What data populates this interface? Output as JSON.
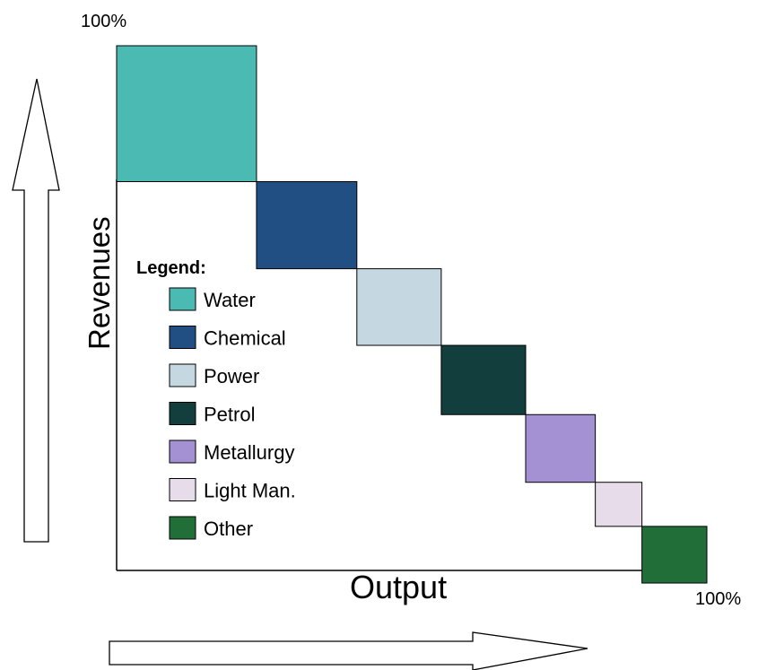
{
  "chart_data": {
    "type": "marimekko-diagonal",
    "title": "",
    "xlabel": "Output",
    "ylabel": "Revenues",
    "x_max_label": "100%",
    "y_max_label": "100%",
    "legend_title": "Legend:",
    "legend_position": "left-middle",
    "series": [
      {
        "name": "Water",
        "color": "#4bbab3",
        "output_share": 23.7,
        "revenue_share": 25.9
      },
      {
        "name": "Chemical",
        "color": "#214f84",
        "output_share": 17.0,
        "revenue_share": 16.6
      },
      {
        "name": "Power",
        "color": "#c5d7e0",
        "output_share": 14.3,
        "revenue_share": 14.6
      },
      {
        "name": "Petrol",
        "color": "#133e3e",
        "output_share": 14.3,
        "revenue_share": 13.2
      },
      {
        "name": "Metallurgy",
        "color": "#a391d4",
        "output_share": 11.8,
        "revenue_share": 12.9
      },
      {
        "name": "Light Man.",
        "color": "#e6dcea",
        "output_share": 7.9,
        "revenue_share": 8.4
      },
      {
        "name": "Other",
        "color": "#226e39",
        "output_share": 11.0,
        "revenue_share": 10.8
      }
    ]
  }
}
